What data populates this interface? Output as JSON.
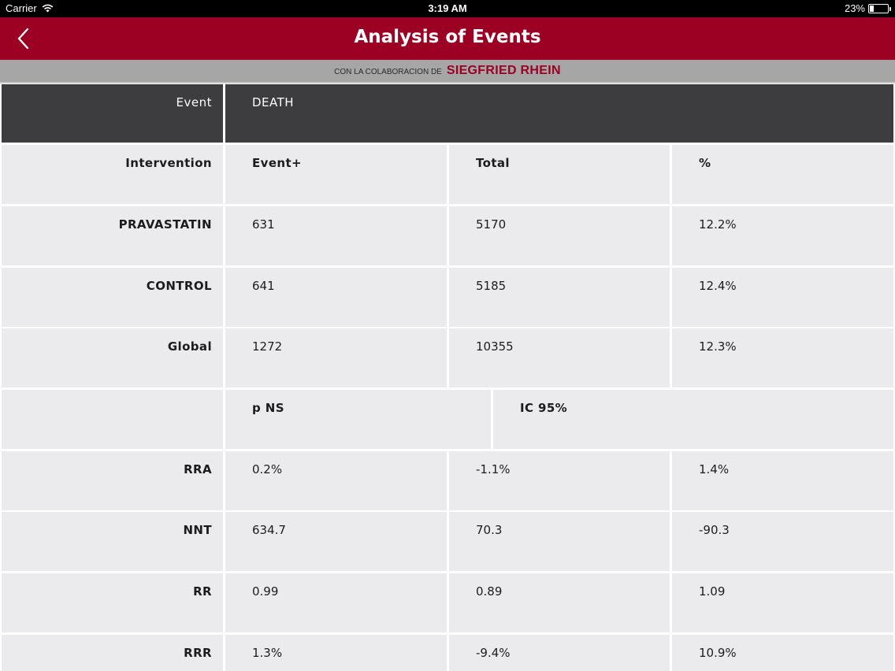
{
  "status_bar": {
    "carrier": "Carrier",
    "time": "3:19 AM",
    "battery": "23%",
    "battery_level": 0.23
  },
  "nav": {
    "title": "Analysis of Events",
    "back_icon": "chevron-left-icon"
  },
  "sponsor": {
    "prefix": "CON LA COLABORACION DE",
    "brand": "SIEGFRIED RHEIN"
  },
  "table": {
    "event_label": "Event",
    "event_value": "DEATH",
    "header": {
      "label": "Intervention",
      "cols": [
        "Event+",
        "Total",
        "%"
      ]
    },
    "groups": [
      {
        "label": "PRAVASTATIN",
        "cols": [
          "631",
          "5170",
          "12.2%"
        ]
      },
      {
        "label": "CONTROL",
        "cols": [
          "641",
          "5185",
          "12.4%"
        ]
      },
      {
        "label": "Global",
        "cols": [
          "1272",
          "10355",
          "12.3%"
        ]
      }
    ],
    "stats_header": {
      "label": "",
      "cols": [
        "p NS",
        "IC 95%"
      ]
    },
    "stats": [
      {
        "label": "RRA",
        "cols": [
          "0.2%",
          "-1.1%",
          "1.4%"
        ]
      },
      {
        "label": "NNT",
        "cols": [
          "634.7",
          "70.3",
          "-90.3"
        ]
      },
      {
        "label": "RR",
        "cols": [
          "0.99",
          "0.89",
          "1.09"
        ]
      },
      {
        "label": "RRR",
        "cols": [
          "1.3%",
          "-9.4%",
          "10.9%"
        ]
      }
    ]
  }
}
